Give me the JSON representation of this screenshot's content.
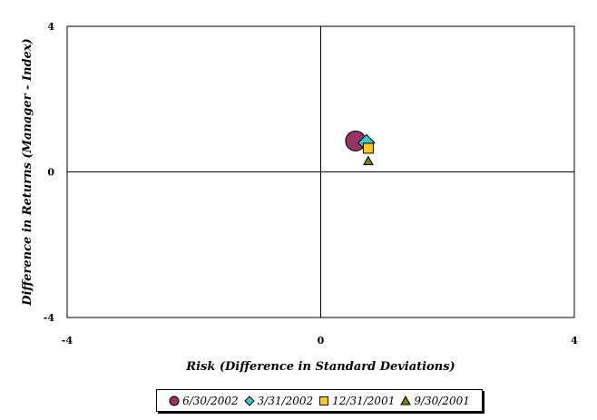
{
  "chart_data": {
    "type": "scatter",
    "xlabel": "Risk (Difference in Standard Deviations)",
    "ylabel": "Difference in Returns (Manager - Index)",
    "xlim": [
      -4,
      4
    ],
    "ylim": [
      -4,
      4
    ],
    "x_ticks": [
      "-4",
      "0",
      "4"
    ],
    "y_ticks": [
      "-4",
      "0",
      "4"
    ],
    "grid": false,
    "legend_position": "bottom",
    "series": [
      {
        "name": "6/30/2002",
        "x": 0.55,
        "y": 0.85,
        "marker": "circle",
        "color": "#993366"
      },
      {
        "name": "3/31/2002",
        "x": 0.72,
        "y": 0.8,
        "marker": "diamond",
        "color": "#33CCCC"
      },
      {
        "name": "12/31/2001",
        "x": 0.75,
        "y": 0.65,
        "marker": "square",
        "color": "#FFCC00"
      },
      {
        "name": "9/30/2001",
        "x": 0.75,
        "y": 0.3,
        "marker": "triangle",
        "color": "#808000"
      }
    ]
  }
}
